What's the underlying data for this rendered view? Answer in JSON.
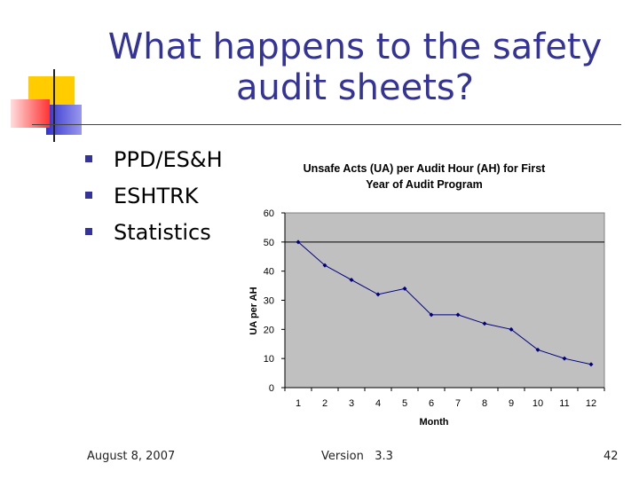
{
  "slide": {
    "title": "What happens to the safety audit sheets?",
    "bullets": [
      "PPD/ES&H",
      "ESHTRK",
      "Statistics"
    ],
    "footer_date": "August 8, 2007",
    "footer_version": "Version   3.3",
    "page_number": "42"
  },
  "colors": {
    "title": "#333399",
    "bullet": "#333399",
    "deco_yellow": "#ffcc00",
    "deco_red": "#ff3333",
    "deco_blue": "#3333cc",
    "plot_bg": "#c0c0c0",
    "series_line": "#000080"
  },
  "chart_data": {
    "type": "line",
    "title": "Unsafe Acts (UA) per Audit Hour (AH) for First Year of Audit Program",
    "xlabel": "Month",
    "ylabel": "UA per AH",
    "x": [
      1,
      2,
      3,
      4,
      5,
      6,
      7,
      8,
      9,
      10,
      11,
      12
    ],
    "x_tick_labels": [
      "1",
      "2",
      "3",
      "4",
      "5",
      "6",
      "7",
      "8",
      "9",
      "10",
      "11",
      "12"
    ],
    "y_tick_labels": [
      "0",
      "10",
      "20",
      "30",
      "40",
      "50",
      "60"
    ],
    "series": [
      {
        "values": [
          50,
          42,
          37,
          32,
          34,
          25,
          25,
          22,
          20,
          13,
          10,
          8
        ]
      }
    ],
    "ylim": [
      0,
      60
    ],
    "y_ticks": [
      0,
      10,
      20,
      30,
      40,
      50,
      60
    ],
    "grid": "horizontal line at 50 only",
    "legend": "none"
  }
}
